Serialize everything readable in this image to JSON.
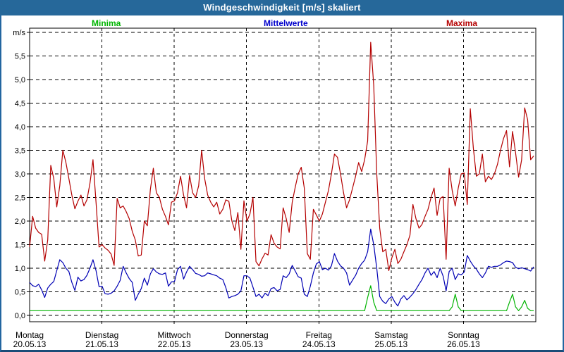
{
  "window": {
    "title": "Windgeschwindigkeit [m/s] skaliert",
    "titlebar_color": "#26689a",
    "frame_color": "#2366a0",
    "background_color": "#ffffff"
  },
  "legend": {
    "items": [
      {
        "label": "Minima",
        "color": "#00b400"
      },
      {
        "label": "Mittelwerte",
        "color": "#0000cc"
      },
      {
        "label": "Maxima",
        "color": "#b40000"
      }
    ]
  },
  "chart_data": {
    "type": "line",
    "title": "Windgeschwindigkeit [m/s] skaliert",
    "unit_label": "m/s",
    "ylim": [
      0,
      6
    ],
    "ytick_step": 0.5,
    "ytick_labels": [
      "0,0",
      "0,5",
      "1,0",
      "1,5",
      "2,0",
      "2,5",
      "3,0",
      "3,5",
      "4,0",
      "4,5",
      "5,0",
      "5,5"
    ],
    "grid": "dashed-black-on-white",
    "legend_position": "top",
    "samples_per_day": 24,
    "x_categories_days": [
      {
        "name": "Montag",
        "date": "20.05.13"
      },
      {
        "name": "Dienstag",
        "date": "21.05.13"
      },
      {
        "name": "Mittwoch",
        "date": "22.05.13"
      },
      {
        "name": "Donnerstag",
        "date": "23.05.13"
      },
      {
        "name": "Freitag",
        "date": "24.05.13"
      },
      {
        "name": "Samstag",
        "date": "25.05.13"
      },
      {
        "name": "Sonntag",
        "date": "26.05.13"
      }
    ],
    "series": [
      {
        "name": "Minima",
        "color": "#00b400",
        "values_by_day": [
          [
            0.1,
            0.1,
            0.1,
            0.1,
            0.1,
            0.1,
            0.1,
            0.1,
            0.1,
            0.1,
            0.1,
            0.1,
            0.1,
            0.1,
            0.1,
            0.1,
            0.1,
            0.1,
            0.1,
            0.1,
            0.1,
            0.1,
            0.1,
            0.1
          ],
          [
            0.1,
            0.1,
            0.1,
            0.1,
            0.1,
            0.1,
            0.1,
            0.1,
            0.1,
            0.1,
            0.1,
            0.1,
            0.1,
            0.1,
            0.1,
            0.1,
            0.1,
            0.1,
            0.1,
            0.1,
            0.1,
            0.1,
            0.1,
            0.1
          ],
          [
            0.1,
            0.1,
            0.1,
            0.1,
            0.1,
            0.1,
            0.1,
            0.1,
            0.1,
            0.1,
            0.1,
            0.1,
            0.1,
            0.1,
            0.1,
            0.1,
            0.1,
            0.1,
            0.1,
            0.1,
            0.1,
            0.1,
            0.1,
            0.1
          ],
          [
            0.1,
            0.1,
            0.1,
            0.1,
            0.1,
            0.1,
            0.1,
            0.1,
            0.1,
            0.1,
            0.1,
            0.1,
            0.1,
            0.1,
            0.1,
            0.1,
            0.1,
            0.1,
            0.1,
            0.1,
            0.1,
            0.1,
            0.1,
            0.1
          ],
          [
            0.1,
            0.1,
            0.1,
            0.1,
            0.1,
            0.1,
            0.1,
            0.1,
            0.1,
            0.1,
            0.1,
            0.1,
            0.1,
            0.1,
            0.1,
            0.1,
            0.38,
            0.63,
            0.28,
            0.1,
            0.1,
            0.1,
            0.1,
            0.1
          ],
          [
            0.1,
            0.1,
            0.1,
            0.1,
            0.1,
            0.1,
            0.1,
            0.1,
            0.1,
            0.1,
            0.1,
            0.1,
            0.1,
            0.1,
            0.1,
            0.1,
            0.1,
            0.1,
            0.1,
            0.1,
            0.18,
            0.45,
            0.18,
            0.1
          ],
          [
            0.1,
            0.1,
            0.1,
            0.1,
            0.1,
            0.1,
            0.1,
            0.1,
            0.1,
            0.1,
            0.1,
            0.1,
            0.1,
            0.1,
            0.1,
            0.28,
            0.45,
            0.18,
            0.1,
            0.18,
            0.32,
            0.15,
            0.1,
            0.1
          ]
        ]
      },
      {
        "name": "Mittelwerte",
        "color": "#0000b4",
        "values_by_day": [
          [
            0.7,
            0.63,
            0.61,
            0.66,
            0.54,
            0.38,
            0.58,
            0.66,
            0.72,
            0.95,
            1.18,
            1.12,
            1.0,
            0.93,
            0.7,
            0.53,
            0.81,
            0.73,
            0.76,
            0.85,
            1.0,
            1.18,
            0.95,
            0.61
          ],
          [
            0.62,
            0.46,
            0.45,
            0.47,
            0.52,
            0.62,
            0.74,
            1.04,
            0.9,
            0.78,
            0.7,
            0.32,
            0.45,
            0.57,
            0.79,
            0.64,
            0.88,
            0.99,
            0.92,
            0.88,
            0.87,
            0.9,
            0.62,
            0.71
          ],
          [
            0.72,
            0.97,
            1.04,
            0.77,
            0.92,
            1.04,
            0.97,
            0.89,
            0.87,
            0.83,
            0.84,
            0.9,
            0.88,
            0.86,
            0.84,
            0.79,
            0.76,
            0.59,
            0.37,
            0.4,
            0.42,
            0.45,
            0.52,
            0.84
          ],
          [
            0.84,
            0.79,
            0.6,
            0.4,
            0.45,
            0.37,
            0.47,
            0.42,
            0.57,
            0.59,
            0.52,
            0.55,
            0.84,
            0.8,
            0.88,
            1.06,
            0.94,
            0.82,
            0.79,
            0.45,
            0.4,
            0.62,
            0.9,
            1.09
          ],
          [
            1.14,
            0.97,
            1.0,
            0.96,
            1.05,
            1.31,
            1.15,
            1.05,
            1.0,
            0.9,
            0.64,
            0.75,
            0.85,
            1.0,
            1.1,
            1.17,
            1.35,
            1.83,
            1.5,
            1.0,
            0.4,
            0.3,
            0.25,
            0.35
          ],
          [
            0.4,
            0.28,
            0.2,
            0.35,
            0.42,
            0.33,
            0.39,
            0.46,
            0.55,
            0.66,
            0.76,
            0.9,
            1.0,
            0.85,
            0.93,
            0.8,
            1.0,
            0.83,
            0.52,
            0.93,
            1.0,
            0.76,
            0.88,
            0.86
          ],
          [
            0.92,
            1.27,
            1.15,
            1.05,
            0.98,
            0.88,
            0.8,
            0.9,
            1.04,
            1.02,
            1.04,
            1.04,
            1.07,
            1.12,
            1.15,
            1.14,
            1.12,
            1.02,
            0.99,
            1.01,
            0.99,
            0.97,
            0.94,
            1.03
          ]
        ]
      },
      {
        "name": "Maxima",
        "color": "#b40000",
        "values_by_day": [
          [
            1.45,
            2.1,
            1.85,
            1.76,
            1.72,
            1.15,
            1.6,
            3.18,
            2.9,
            2.3,
            2.75,
            3.5,
            3.25,
            2.9,
            2.55,
            2.26,
            2.42,
            2.55,
            2.32,
            2.45,
            2.8,
            3.3,
            2.4,
            1.45
          ],
          [
            1.5,
            1.43,
            1.38,
            1.3,
            1.06,
            2.48,
            2.28,
            2.32,
            2.2,
            2.05,
            1.78,
            1.6,
            1.26,
            1.28,
            2.0,
            1.9,
            2.67,
            3.12,
            2.6,
            2.5,
            2.25,
            2.1,
            1.92,
            2.4
          ],
          [
            2.43,
            2.6,
            2.95,
            2.55,
            2.28,
            2.97,
            2.6,
            2.5,
            2.75,
            3.5,
            2.9,
            2.55,
            2.4,
            2.3,
            2.4,
            2.15,
            2.25,
            2.45,
            2.42,
            2.0,
            1.8,
            2.18,
            1.4,
            2.43
          ],
          [
            2.0,
            2.15,
            2.5,
            1.14,
            1.05,
            1.2,
            1.32,
            1.28,
            1.71,
            1.53,
            1.45,
            1.41,
            2.28,
            2.06,
            1.76,
            2.4,
            2.72,
            3.0,
            3.14,
            2.7,
            1.31,
            1.19,
            2.25,
            2.13
          ],
          [
            2.0,
            2.15,
            2.4,
            2.65,
            3.0,
            3.42,
            3.35,
            3.0,
            2.6,
            2.28,
            2.45,
            2.7,
            2.95,
            3.24,
            3.05,
            3.3,
            3.7,
            5.79,
            4.88,
            3.0,
            1.85,
            1.35,
            1.4,
            0.95
          ],
          [
            1.22,
            1.4,
            1.1,
            1.19,
            1.35,
            1.5,
            1.7,
            2.35,
            2.05,
            1.85,
            1.93,
            2.1,
            2.25,
            2.5,
            2.7,
            2.12,
            2.48,
            2.52,
            1.19,
            3.12,
            2.65,
            2.32,
            2.7,
            3.0
          ],
          [
            3.02,
            2.35,
            4.38,
            3.55,
            2.95,
            3.0,
            3.42,
            2.83,
            2.95,
            2.88,
            3.0,
            3.2,
            3.5,
            3.75,
            3.92,
            3.15,
            3.9,
            3.45,
            2.93,
            3.3,
            4.4,
            4.15,
            3.3,
            3.38
          ]
        ]
      }
    ]
  }
}
